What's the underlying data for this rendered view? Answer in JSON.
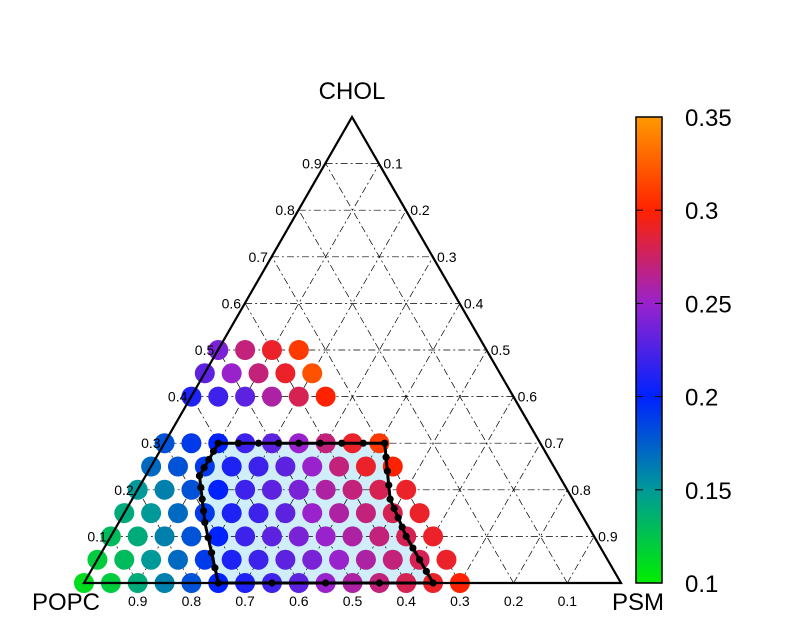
{
  "chart_data": {
    "type": "scatter",
    "subtype": "ternary",
    "vertices": {
      "top": "CHOL",
      "left": "POPC",
      "right": "PSM"
    },
    "tick_values": [
      0.1,
      0.2,
      0.3,
      0.4,
      0.5,
      0.6,
      0.7,
      0.8,
      0.9
    ],
    "tick_labels": [
      "0.1",
      "0.2",
      "0.3",
      "0.4",
      "0.5",
      "0.6",
      "0.7",
      "0.8",
      "0.9"
    ],
    "grid": "dash-dot",
    "colorbar": {
      "range": [
        0.1,
        0.35
      ],
      "tick_values": [
        0.1,
        0.15,
        0.2,
        0.25,
        0.3,
        0.35
      ],
      "tick_labels": [
        "0.1",
        "0.15",
        "0.2",
        "0.25",
        "0.3",
        "0.35"
      ],
      "colors": [
        "#00ee00",
        "#009999",
        "#0022ff",
        "#9922cc",
        "#ff2200",
        "#ff9900"
      ],
      "position": "right"
    },
    "region": {
      "fill": "#cfeefa",
      "points_chol_psm": [
        [
          0.3,
          0.25
        ],
        [
          0.3,
          0.1
        ],
        [
          0.23,
          0.1
        ],
        [
          0.13,
          0.16
        ],
        [
          0.0,
          0.25
        ],
        [
          0.0,
          0.65
        ],
        [
          0.1,
          0.55
        ],
        [
          0.18,
          0.48
        ],
        [
          0.3,
          0.41
        ]
      ]
    },
    "fields": [
      {
        "chol": 0.5,
        "values": [
          0.24,
          0.27,
          0.29,
          0.31
        ]
      },
      {
        "chol": 0.45,
        "values": [
          0.23,
          0.25,
          0.27,
          0.29,
          0.32
        ]
      },
      {
        "chol": 0.4,
        "values": [
          0.21,
          0.22,
          0.23,
          0.26,
          0.28,
          0.3
        ]
      },
      {
        "chol": 0.3,
        "values": [
          0.18,
          0.19,
          0.2,
          0.22,
          0.23,
          0.25,
          0.27,
          0.29,
          0.31
        ]
      },
      {
        "chol": 0.25,
        "values": [
          0.17,
          0.18,
          0.19,
          0.21,
          0.22,
          0.23,
          0.25,
          0.27,
          0.29,
          0.3
        ]
      },
      {
        "chol": 0.2,
        "values": [
          0.15,
          0.16,
          0.18,
          0.2,
          0.22,
          0.23,
          0.24,
          0.26,
          0.27,
          0.28,
          0.29
        ]
      },
      {
        "chol": 0.15,
        "values": [
          0.14,
          0.15,
          0.17,
          0.19,
          0.21,
          0.22,
          0.23,
          0.25,
          0.26,
          0.27,
          0.28,
          0.29
        ]
      },
      {
        "chol": 0.1,
        "values": [
          0.13,
          0.14,
          0.16,
          0.18,
          0.2,
          0.22,
          0.23,
          0.24,
          0.25,
          0.26,
          0.27,
          0.28,
          0.29
        ]
      },
      {
        "chol": 0.05,
        "values": [
          0.12,
          0.13,
          0.15,
          0.17,
          0.19,
          0.21,
          0.22,
          0.23,
          0.24,
          0.25,
          0.26,
          0.27,
          0.28,
          0.29
        ]
      },
      {
        "chol": 0.0,
        "values": [
          0.11,
          0.12,
          0.14,
          0.16,
          0.18,
          0.2,
          0.21,
          0.22,
          0.23,
          0.25,
          0.26,
          0.27,
          0.28,
          0.29,
          0.3
        ]
      }
    ]
  }
}
